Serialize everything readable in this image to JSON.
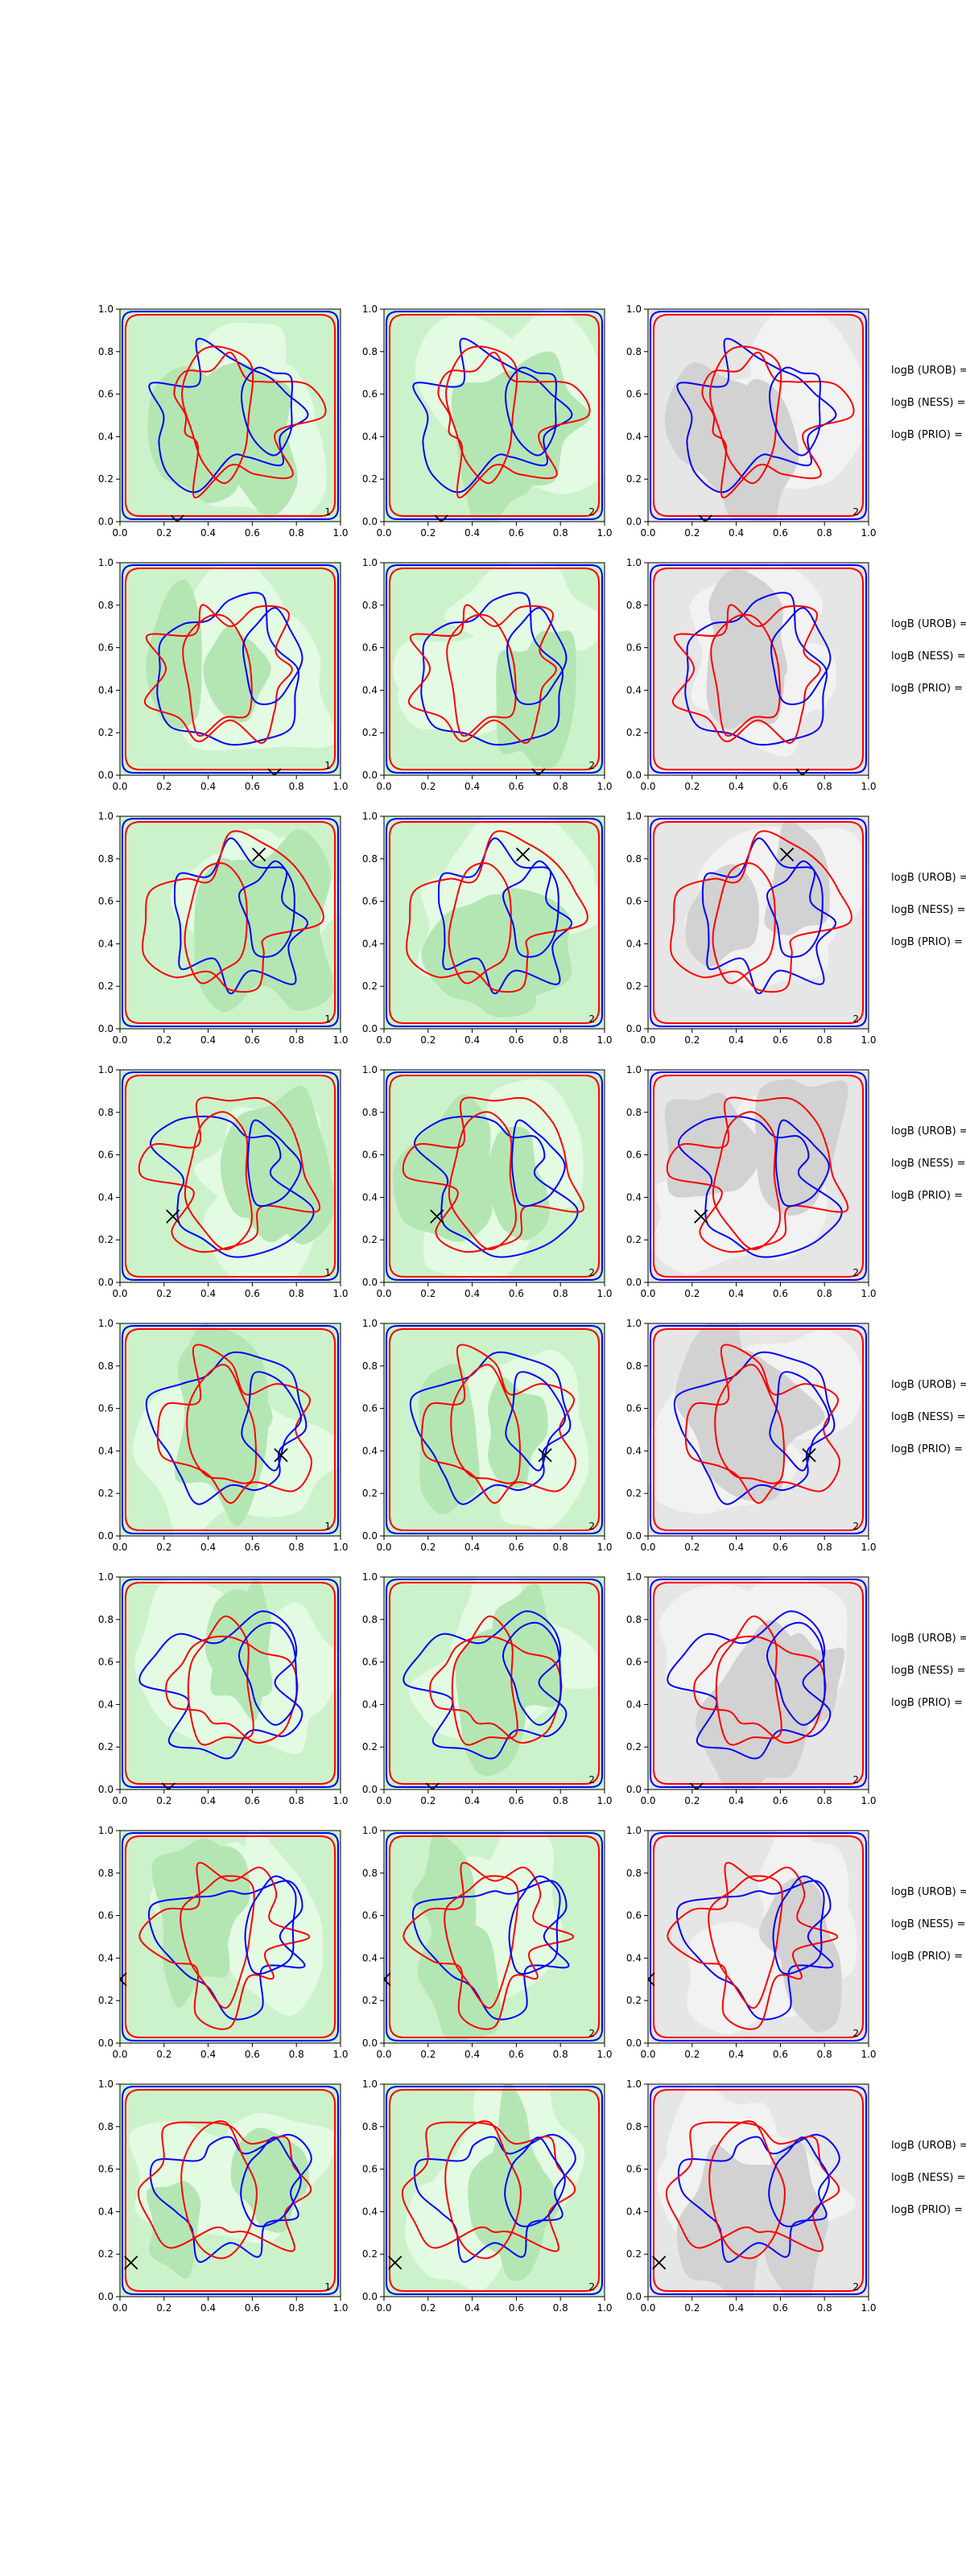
{
  "chart_data": {
    "type": "contour",
    "layout": {
      "rows": 8,
      "cols": 3
    },
    "axes": {
      "xlim": [
        0,
        1
      ],
      "ylim": [
        0,
        1
      ],
      "xticks": [
        "0.0",
        "0.2",
        "0.4",
        "0.6",
        "0.8",
        "1.0"
      ],
      "yticks": [
        "0.0",
        "0.2",
        "0.4",
        "0.6",
        "0.8",
        "1.0"
      ],
      "grid": false
    },
    "colors": {
      "green_bg": "#ccf2cc",
      "green_light": "#e3fae3",
      "green_dark": "#b4e6b4",
      "grey_bg": "#e6e6e6",
      "grey_light": "#f2f2f2",
      "grey_dark": "#d2d2d2",
      "blue": "#0000ff",
      "red": "#ff0000",
      "marker": "#000000"
    },
    "side_labels": [
      "logB (UROB) =",
      "logB (NESS) =",
      "logB (PRIO) ="
    ],
    "rows": [
      {
        "marker": [
          0.26,
          0.0
        ],
        "panels": [
          {
            "background": "green",
            "corner_label": "1",
            "corner_color": "red"
          },
          {
            "background": "green",
            "corner_label": "2",
            "corner_color": "red"
          },
          {
            "background": "grey",
            "corner_label": "2",
            "corner_color": "red"
          }
        ]
      },
      {
        "marker": [
          0.7,
          0.0
        ],
        "panels": [
          {
            "background": "green",
            "corner_label": "1",
            "corner_color": "red"
          },
          {
            "background": "green",
            "corner_label": "2",
            "corner_color": "red"
          },
          {
            "background": "grey",
            "corner_label": "",
            "corner_color": "red"
          }
        ]
      },
      {
        "marker": [
          0.63,
          0.82
        ],
        "panels": [
          {
            "background": "green",
            "corner_label": "1",
            "corner_color": "red"
          },
          {
            "background": "green",
            "corner_label": "2",
            "corner_color": "red"
          },
          {
            "background": "grey",
            "corner_label": "2",
            "corner_color": "red"
          }
        ]
      },
      {
        "marker": [
          0.24,
          0.31
        ],
        "panels": [
          {
            "background": "green",
            "corner_label": "1",
            "corner_color": "red"
          },
          {
            "background": "green",
            "corner_label": "2",
            "corner_color": "red"
          },
          {
            "background": "grey",
            "corner_label": "2",
            "corner_color": "red"
          }
        ]
      },
      {
        "marker": [
          0.73,
          0.38
        ],
        "panels": [
          {
            "background": "green",
            "corner_label": "1",
            "corner_color": "red"
          },
          {
            "background": "green",
            "corner_label": "2",
            "corner_color": "red"
          },
          {
            "background": "grey",
            "corner_label": "2",
            "corner_color": "red"
          }
        ]
      },
      {
        "marker": [
          0.22,
          0.0
        ],
        "panels": [
          {
            "background": "green",
            "corner_label": "",
            "corner_color": "red"
          },
          {
            "background": "green",
            "corner_label": "2",
            "corner_color": "red"
          },
          {
            "background": "grey",
            "corner_label": "2",
            "corner_color": "red"
          }
        ]
      },
      {
        "marker": [
          0.0,
          0.3
        ],
        "panels": [
          {
            "background": "green",
            "corner_label": "",
            "corner_color": "red"
          },
          {
            "background": "green",
            "corner_label": "2",
            "corner_color": "blue"
          },
          {
            "background": "grey",
            "corner_label": "2",
            "corner_color": "blue"
          }
        ]
      },
      {
        "marker": [
          0.05,
          0.16
        ],
        "panels": [
          {
            "background": "green",
            "corner_label": "1",
            "corner_color": "red"
          },
          {
            "background": "green",
            "corner_label": "2",
            "corner_color": "red"
          },
          {
            "background": "grey",
            "corner_label": "2",
            "corner_color": "red"
          }
        ]
      }
    ]
  }
}
